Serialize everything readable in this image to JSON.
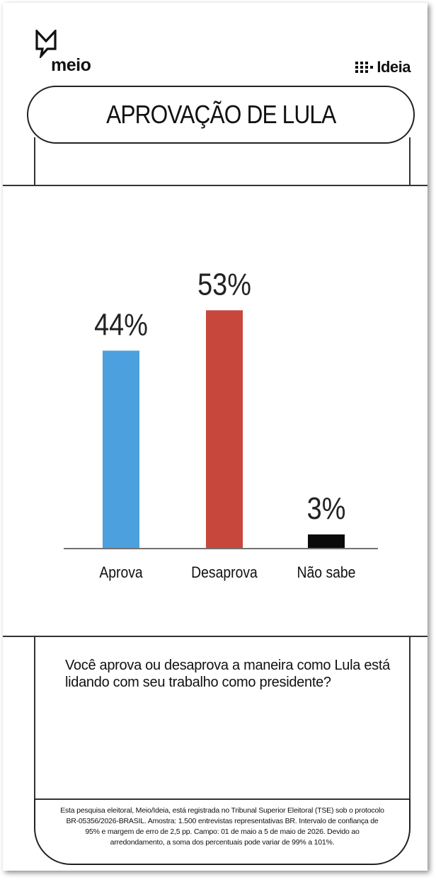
{
  "brand": {
    "left_logo": "meio",
    "right_logo": "Ideia"
  },
  "title": "APROVAÇÃO DE LULA",
  "chart_data": {
    "type": "bar",
    "categories": [
      "Aprova",
      "Desaprova",
      "Não sabe"
    ],
    "values": [
      44,
      53,
      3
    ],
    "value_labels": [
      "44%",
      "53%",
      "3%"
    ],
    "colors": [
      "#4ca0de",
      "#c8473c",
      "#0a0a0a"
    ],
    "ylim": [
      0,
      60
    ],
    "unit": "%",
    "legend": "none",
    "grid": false
  },
  "question": "Você aprova ou desaprova a maneira como Lula está lidando com seu trabalho como presidente?",
  "footnote": "Esta pesquisa eleitoral, Meio/Ideia, está registrada no Tribunal Superior Eleitoral (TSE) sob o protocolo BR-05356/2026-BRASIL. Amostra: 1.500 entrevistas representativas BR. Intervalo de confiança de 95% e margem de erro de 2,5 pp. Campo: 01 de maio a 5 de maio de 2026. Devido ao arredondamento, a soma dos percentuais pode variar de 99% a 101%."
}
